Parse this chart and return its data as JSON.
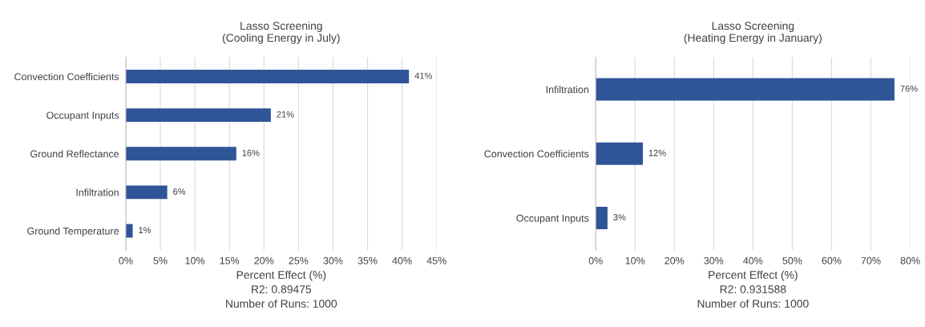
{
  "chart_data": [
    {
      "type": "bar",
      "orientation": "horizontal",
      "title": "Lasso Screening",
      "subtitle": "(Cooling Energy in July)",
      "categories": [
        "Convection Coefficients",
        "Occupant Inputs",
        "Ground Reflectance",
        "Infiltration",
        "Ground Temperature"
      ],
      "values": [
        41,
        21,
        16,
        6,
        1
      ],
      "value_labels": [
        "41%",
        "21%",
        "16%",
        "6%",
        "1%"
      ],
      "color": "#2f5597",
      "xlabel": "Percent Effect (%)",
      "annotations": [
        "R2: 0.89475",
        "Number of Runs: 1000"
      ],
      "xlim": [
        0,
        45
      ],
      "xticks": [
        {
          "value": 0,
          "label": "0%"
        },
        {
          "value": 5,
          "label": "5%"
        },
        {
          "value": 10,
          "label": "10%"
        },
        {
          "value": 15,
          "label": "15%"
        },
        {
          "value": 20,
          "label": "20%"
        },
        {
          "value": 25,
          "label": "25%"
        },
        {
          "value": 30,
          "label": "30%"
        },
        {
          "value": 35,
          "label": "35%"
        },
        {
          "value": 40,
          "label": "40%"
        },
        {
          "value": 45,
          "label": "45%"
        }
      ],
      "grid": "x"
    },
    {
      "type": "bar",
      "orientation": "horizontal",
      "title": "Lasso Screening",
      "subtitle": "(Heating Energy in January)",
      "categories": [
        "Infiltration",
        "Convection Coefficients",
        "Occupant Inputs"
      ],
      "values": [
        76,
        12,
        3
      ],
      "value_labels": [
        "76%",
        "12%",
        "3%"
      ],
      "color": "#2f5597",
      "xlabel": "Percent Effect (%)",
      "annotations": [
        "R2: 0.931588",
        "Number of Runs: 1000"
      ],
      "xlim": [
        0,
        80
      ],
      "xticks": [
        {
          "value": 0,
          "label": "0%"
        },
        {
          "value": 10,
          "label": "10%"
        },
        {
          "value": 20,
          "label": "20%"
        },
        {
          "value": 30,
          "label": "30%"
        },
        {
          "value": 40,
          "label": "40%"
        },
        {
          "value": 50,
          "label": "50%"
        },
        {
          "value": 60,
          "label": "60%"
        },
        {
          "value": 70,
          "label": "70%"
        },
        {
          "value": 80,
          "label": "80%"
        }
      ],
      "grid": "x"
    }
  ]
}
